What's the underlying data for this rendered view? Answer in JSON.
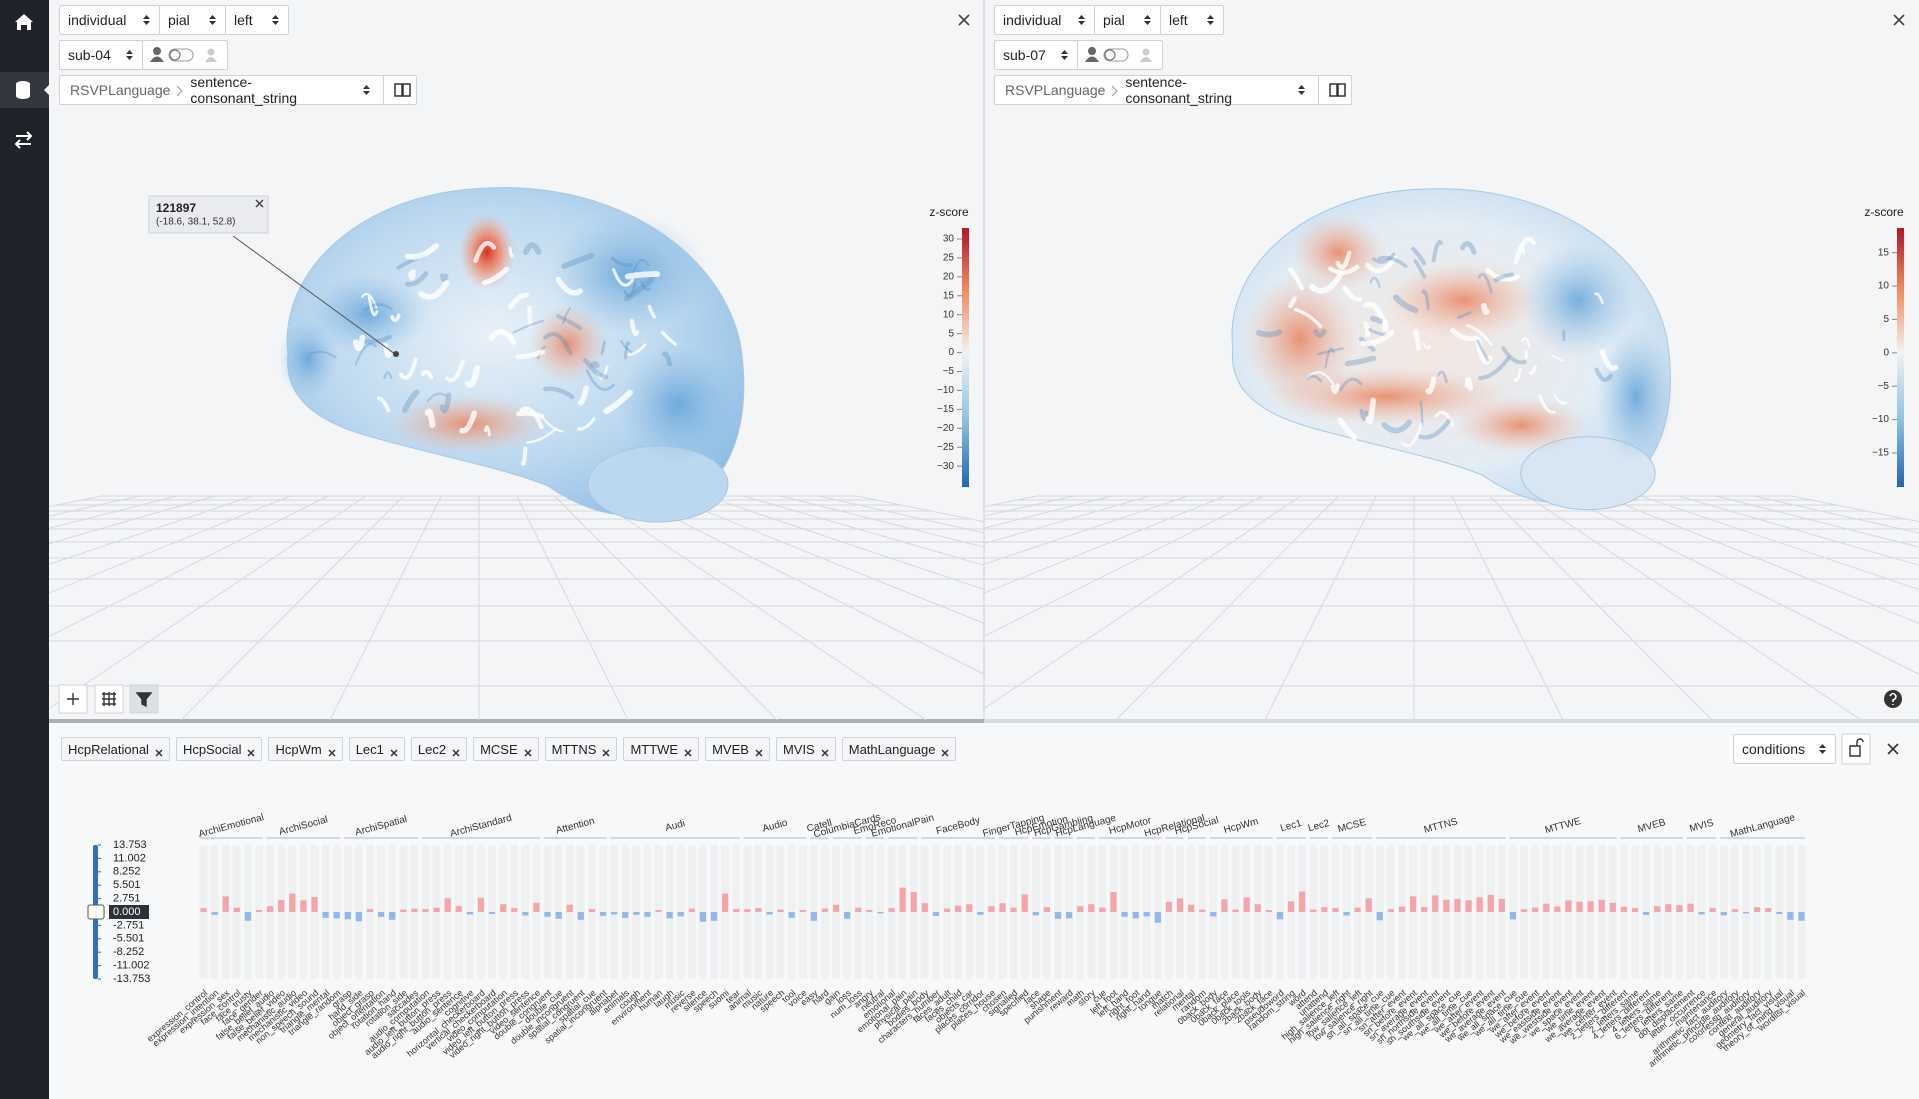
{
  "panels": [
    {
      "mode": "individual",
      "surface": "pial",
      "hemisphere": "left",
      "subject": "sub-04",
      "task": "RSVPLanguage",
      "contrast": "sentence-consonant_string",
      "tooltip": {
        "id": "121897",
        "coords": "(-18.6, 38.1, 52.8)"
      },
      "colorbar": {
        "title": "z-score",
        "lim": [
          -35.5,
          32.9
        ],
        "ticks": [
          30,
          25,
          20,
          15,
          10,
          5,
          0,
          {
            "value": -5,
            "label": "−5"
          },
          {
            "value": -10,
            "label": "−10"
          },
          {
            "value": -15,
            "label": "−15"
          },
          {
            "value": -20,
            "label": "−20"
          },
          {
            "value": -25,
            "label": "−25"
          },
          {
            "value": -30,
            "label": "−30"
          }
        ]
      }
    },
    {
      "mode": "individual",
      "surface": "pial",
      "hemisphere": "left",
      "subject": "sub-07",
      "task": "RSVPLanguage",
      "contrast": "sentence-consonant_string",
      "colorbar": {
        "title": "z-score",
        "lim": [
          -20.1,
          18.7
        ],
        "ticks": [
          15,
          10,
          5,
          0,
          {
            "value": -5,
            "label": "−5"
          },
          {
            "value": -10,
            "label": "−10"
          },
          {
            "value": -15,
            "label": "−15"
          }
        ]
      }
    }
  ],
  "filter_tags": [
    "HcpRelational",
    "HcpSocial",
    "HcpWm",
    "Lec1",
    "Lec2",
    "MCSE",
    "MTTNS",
    "MTTWE",
    "MVEB",
    "MVIS",
    "MathLanguage"
  ],
  "group_by": "conditions",
  "chart_data": {
    "type": "bar",
    "ylim": [
      -13.753,
      13.753
    ],
    "yticks": [
      13.753,
      11.002,
      8.252,
      5.501,
      2.751,
      {
        "value": 0,
        "label": "0.000"
      },
      -2.751,
      -5.501,
      -8.252,
      -11.002,
      -13.753
    ],
    "positive_color": "#f5a5aa",
    "negative_color": "#92b8ea",
    "groups": [
      {
        "name": "ArchiEmotional",
        "categories": [
          "expression_control",
          "expression_intention",
          "expression_sex",
          "face_control",
          "face_trusty",
          "face_gender"
        ],
        "values": [
          0.8,
          -0.6,
          3.2,
          0.9,
          -1.8,
          0.4
        ]
      },
      {
        "name": "ArchiSocial",
        "categories": [
          "false_belief_audio",
          "false_belief_video",
          "mechanistic_audio",
          "mechanistic_video",
          "non_speech_sound",
          "triangle_mental",
          "triangle_random"
        ],
        "values": [
          1.2,
          2.5,
          3.8,
          2.4,
          3.1,
          -1.2,
          -1.3
        ]
      },
      {
        "name": "ArchiSpatial",
        "categories": [
          "grasp",
          "hand_side",
          "object_grasp",
          "object_orientation",
          "rotation_hand",
          "rotation_side",
          "saccades"
        ],
        "values": [
          -1.5,
          -1.9,
          0.6,
          -1.0,
          -1.6,
          0.5,
          0.7
        ]
      },
      {
        "name": "ArchiStandard",
        "categories": [
          "audio_computation",
          "audio_left_button_press",
          "audio_right_button_press",
          "audio_sentence",
          "cognitive",
          "horizontal_checkerboard",
          "vertical_checkerboard",
          "video_computation",
          "video_left_button_press",
          "video_right_button_press",
          "video_sentence"
        ],
        "values": [
          0.6,
          0.9,
          2.8,
          1.2,
          -0.5,
          2.9,
          -0.4,
          1.6,
          0.8,
          -0.7,
          1.9
        ]
      },
      {
        "name": "Attention",
        "categories": [
          "double_congruent",
          "double_cue",
          "double_incongruent",
          "spatial_congruent",
          "spatial_cue",
          "spatial_incongruent"
        ],
        "values": [
          -1.0,
          -1.4,
          1.5,
          -1.6,
          0.6,
          -0.8
        ]
      },
      {
        "name": "Audi",
        "categories": [
          "alphabet",
          "animals",
          "cough",
          "environment",
          "human",
          "laugh",
          "music",
          "reverse",
          "silence",
          "speech",
          "suomi",
          "tear"
        ],
        "values": [
          -0.5,
          -1.2,
          -0.6,
          -1.0,
          0.4,
          -1.3,
          -0.9,
          0.7,
          -2.0,
          -1.8,
          3.8,
          0.6
        ]
      },
      {
        "name": "Audio",
        "categories": [
          "animal",
          "music",
          "nature",
          "speech",
          "tool",
          "voice"
        ],
        "values": [
          0.6,
          0.8,
          -0.5,
          0.5,
          -1.2,
          0.4
        ]
      },
      {
        "name": "Catell",
        "categories": [
          "easy",
          "hard"
        ],
        "values": [
          -1.8,
          0.7
        ]
      },
      {
        "name": "ColumbiaCards",
        "categories": [
          "gain",
          "loss",
          "num_loss"
        ],
        "values": [
          1.5,
          -1.4,
          0.9
        ]
      },
      {
        "name": "EmoReco",
        "categories": [
          "angry",
          "neutral"
        ],
        "values": [
          0.4,
          -0.3
        ]
      },
      {
        "name": "EmotionalPain",
        "categories": [
          "emotional",
          "emotional_pain",
          "physical_pain"
        ],
        "values": [
          0.8,
          5.0,
          4.1
        ]
      },
      {
        "name": "FaceBody",
        "categories": [
          "bodies_body",
          "characters_number",
          "faces_adult",
          "faces_child",
          "objects_car",
          "places_corridor",
          "places_house"
        ],
        "values": [
          1.8,
          -0.8,
          0.7,
          1.3,
          1.6,
          -0.6,
          1.2
        ]
      },
      {
        "name": "FingerTapping",
        "categories": [
          "chosen",
          "signalled",
          "specified"
        ],
        "values": [
          1.8,
          0.9,
          3.6
        ]
      },
      {
        "name": "HcpEmotion",
        "categories": [
          "face",
          "shape"
        ],
        "values": [
          -0.7,
          1.0
        ]
      },
      {
        "name": "HcpGambling",
        "categories": [
          "punishment",
          "reward"
        ],
        "values": [
          -1.4,
          -1.3
        ]
      },
      {
        "name": "HcpLanguage",
        "categories": [
          "math",
          "story"
        ],
        "values": [
          1.2,
          1.6
        ]
      },
      {
        "name": "HcpMotor",
        "categories": [
          "cue",
          "left_foot",
          "left_hand",
          "right_foot",
          "right_hand",
          "tongue"
        ],
        "values": [
          0.9,
          4.1,
          -1.0,
          -1.3,
          -0.9,
          -2.2
        ]
      },
      {
        "name": "HcpRelational",
        "categories": [
          "match",
          "relational"
        ],
        "values": [
          2.1,
          2.8
        ]
      },
      {
        "name": "HcpSocial",
        "categories": [
          "mental",
          "random"
        ],
        "values": [
          1.5,
          0.5
        ]
      },
      {
        "name": "HcpWm",
        "categories": [
          "0back_body",
          "0back_face",
          "0back_place",
          "0back_tools",
          "2back_body",
          "2back_face"
        ],
        "values": [
          -0.9,
          2.6,
          0.5,
          3.0,
          1.6,
          0.4
        ]
      },
      {
        "name": "Lec1",
        "categories": [
          "pseudoword",
          "random_string",
          "word"
        ],
        "values": [
          -1.5,
          2.2,
          4.2
        ]
      },
      {
        "name": "Lec2",
        "categories": [
          "attend",
          "unattend"
        ],
        "values": [
          0.5,
          1.0
        ]
      },
      {
        "name": "MCSE",
        "categories": [
          "high_salience_left",
          "high_salience_right",
          "low_salience_left",
          "low_salience_right"
        ],
        "values": [
          0.8,
          -0.7,
          0.9,
          2.8
        ]
      },
      {
        "name": "MTTNS",
        "categories": [
          "sn_all_space_cue",
          "sn_all_time_cue",
          "sn_after_event",
          "sn_before_event",
          "sn_average_event",
          "sn_northside_event",
          "sn_southside_event",
          "we_all_space_cue",
          "we_all_time_cue",
          "we_after_event",
          "we_before_event",
          "we_average_event"
        ],
        "values": [
          -1.7,
          0.6,
          1.1,
          3.2,
          1.0,
          3.4,
          2.5,
          2.7,
          2.4,
          3.0,
          3.5,
          2.7
        ]
      },
      {
        "name": "MTTWE",
        "categories": [
          "we_all_space_cue",
          "we_all_time_cue",
          "we_after_event",
          "we_before_event",
          "we_eastside_event",
          "we_westside_event",
          "we_space_event",
          "we_time_event",
          "we_average_event",
          "we_center_event"
        ],
        "values": [
          -1.5,
          0.6,
          0.9,
          1.7,
          1.1,
          2.4,
          2.1,
          2.2,
          2.5,
          1.9
        ]
      },
      {
        "name": "MVEB",
        "categories": [
          "2_letters_different",
          "2_letters_same",
          "4_letters_different",
          "4_letters_same",
          "6_letters_different",
          "6_letters_same"
        ],
        "values": [
          1.1,
          0.8,
          -0.6,
          1.2,
          1.6,
          1.4
        ]
      },
      {
        "name": "MVIS",
        "categories": [
          "dot_displacement",
          "letter_occurrence",
          "maintenance"
        ],
        "values": [
          1.7,
          -0.5,
          0.8
        ]
      },
      {
        "name": "MathLanguage",
        "categories": [
          "arithmetic_fact_auditory",
          "arithmetic_principle_auditory",
          "colorlessg_auditory",
          "context_auditory",
          "general_auditory",
          "geometry_fact_visual",
          "theory_of_mind_visual",
          "wordlist_visual"
        ],
        "values": [
          -0.7,
          0.6,
          -0.3,
          1.0,
          0.8,
          -0.4,
          -1.6,
          -1.8
        ]
      }
    ]
  }
}
